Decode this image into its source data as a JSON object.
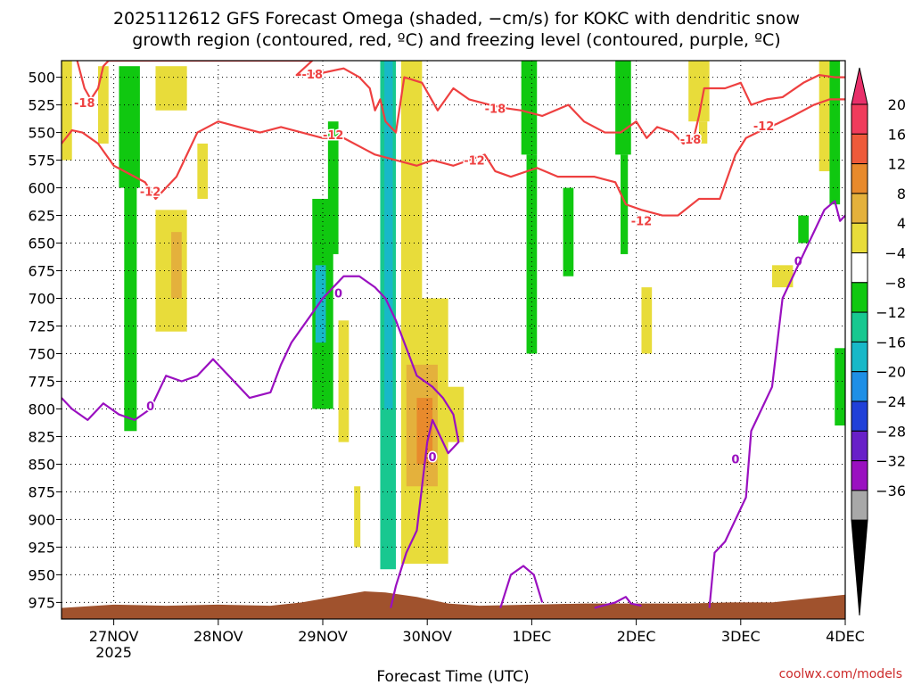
{
  "chart_data": {
    "type": "heatmap",
    "title_line1": "2025112612 GFS Forecast Omega (shaded, −cm/s) for KOKC with dendritic snow",
    "title_line2": "growth region (contoured, red, ºC) and freezing level (contoured, purple, ºC)",
    "xlabel": "Forecast Time (UTC)",
    "credit": "coolwx.com/models",
    "x_ticks": [
      {
        "t": 0.5,
        "label": "27NOV",
        "sub": "2025"
      },
      {
        "t": 1.5,
        "label": "28NOV",
        "sub": ""
      },
      {
        "t": 2.5,
        "label": "29NOV",
        "sub": ""
      },
      {
        "t": 3.5,
        "label": "30NOV",
        "sub": ""
      },
      {
        "t": 4.5,
        "label": "1DEC",
        "sub": ""
      },
      {
        "t": 5.5,
        "label": "2DEC",
        "sub": ""
      },
      {
        "t": 6.5,
        "label": "3DEC",
        "sub": ""
      },
      {
        "t": 7.5,
        "label": "4DEC",
        "sub": ""
      }
    ],
    "y_ticks": [
      "500",
      "525",
      "550",
      "575",
      "600",
      "625",
      "650",
      "675",
      "700",
      "725",
      "750",
      "775",
      "800",
      "825",
      "850",
      "875",
      "900",
      "925",
      "950",
      "975"
    ],
    "y_tick_values": [
      500,
      525,
      550,
      575,
      600,
      625,
      650,
      675,
      700,
      725,
      750,
      775,
      800,
      825,
      850,
      875,
      900,
      925,
      950,
      975
    ],
    "xlim": [
      0,
      7.5
    ],
    "ylim": [
      990,
      485
    ],
    "colorbar": {
      "labels": [
        "20",
        "16",
        "12",
        "8",
        "4",
        "−4",
        "−8",
        "−12",
        "−16",
        "−20",
        "−24",
        "−28",
        "−32",
        "−36"
      ],
      "colors": [
        "#f03c5c",
        "#ee5a3a",
        "#e88a2c",
        "#e4b13c",
        "#e8dc3a",
        "#ffffff",
        "#10c810",
        "#18c890",
        "#18b8c8",
        "#1e8fe6",
        "#2040d8",
        "#6820c8",
        "#9a10c0",
        "#a8a8a8"
      ],
      "top_color": "#e8306a",
      "bottom_color": "#000000"
    },
    "omega_colors": {
      "yellow": "#e8dc3a",
      "orange": "#e4b13c",
      "darkorange": "#e88a2c",
      "green": "#10c810",
      "teal": "#18c890",
      "cyan": "#18b8c8"
    },
    "omega_regions": [
      {
        "t0": -0.05,
        "t1": 0.1,
        "p0": 485,
        "p1": 575,
        "color": "yellow"
      },
      {
        "t0": 0.35,
        "t1": 0.45,
        "p0": 490,
        "p1": 560,
        "color": "yellow"
      },
      {
        "t0": 0.55,
        "t1": 0.75,
        "p0": 490,
        "p1": 600,
        "color": "green"
      },
      {
        "t0": 0.6,
        "t1": 0.72,
        "p0": 600,
        "p1": 820,
        "color": "green"
      },
      {
        "t0": 0.9,
        "t1": 1.2,
        "p0": 490,
        "p1": 530,
        "color": "yellow"
      },
      {
        "t0": 0.9,
        "t1": 1.2,
        "p0": 620,
        "p1": 730,
        "color": "yellow"
      },
      {
        "t0": 1.05,
        "t1": 1.15,
        "p0": 640,
        "p1": 700,
        "color": "orange"
      },
      {
        "t0": 1.3,
        "t1": 1.4,
        "p0": 560,
        "p1": 610,
        "color": "yellow"
      },
      {
        "t0": 2.4,
        "t1": 2.6,
        "p0": 610,
        "p1": 800,
        "color": "green"
      },
      {
        "t0": 2.43,
        "t1": 2.53,
        "p0": 670,
        "p1": 740,
        "color": "cyan"
      },
      {
        "t0": 2.55,
        "t1": 2.65,
        "p0": 540,
        "p1": 660,
        "color": "green"
      },
      {
        "t0": 2.65,
        "t1": 2.75,
        "p0": 720,
        "p1": 830,
        "color": "yellow"
      },
      {
        "t0": 2.8,
        "t1": 2.86,
        "p0": 870,
        "p1": 925,
        "color": "yellow"
      },
      {
        "t0": 3.05,
        "t1": 3.2,
        "p0": 485,
        "p1": 945,
        "color": "teal"
      },
      {
        "t0": 3.09,
        "t1": 3.17,
        "p0": 485,
        "p1": 800,
        "color": "cyan"
      },
      {
        "t0": 3.25,
        "t1": 3.45,
        "p0": 485,
        "p1": 700,
        "color": "yellow"
      },
      {
        "t0": 3.25,
        "t1": 3.7,
        "p0": 700,
        "p1": 940,
        "color": "yellow"
      },
      {
        "t0": 3.3,
        "t1": 3.6,
        "p0": 760,
        "p1": 870,
        "color": "orange"
      },
      {
        "t0": 3.4,
        "t1": 3.55,
        "p0": 790,
        "p1": 850,
        "color": "darkorange"
      },
      {
        "t0": 3.65,
        "t1": 3.85,
        "p0": 780,
        "p1": 830,
        "color": "yellow"
      },
      {
        "t0": 4.4,
        "t1": 4.55,
        "p0": 485,
        "p1": 570,
        "color": "green"
      },
      {
        "t0": 4.45,
        "t1": 4.55,
        "p0": 570,
        "p1": 750,
        "color": "green"
      },
      {
        "t0": 4.8,
        "t1": 4.9,
        "p0": 600,
        "p1": 680,
        "color": "green"
      },
      {
        "t0": 5.3,
        "t1": 5.45,
        "p0": 485,
        "p1": 570,
        "color": "green"
      },
      {
        "t0": 5.35,
        "t1": 5.42,
        "p0": 570,
        "p1": 660,
        "color": "green"
      },
      {
        "t0": 5.55,
        "t1": 5.65,
        "p0": 690,
        "p1": 750,
        "color": "yellow"
      },
      {
        "t0": 6.0,
        "t1": 6.2,
        "p0": 485,
        "p1": 540,
        "color": "yellow"
      },
      {
        "t0": 6.1,
        "t1": 6.18,
        "p0": 540,
        "p1": 560,
        "color": "yellow"
      },
      {
        "t0": 6.8,
        "t1": 7.0,
        "p0": 670,
        "p1": 690,
        "color": "yellow"
      },
      {
        "t0": 7.05,
        "t1": 7.15,
        "p0": 625,
        "p1": 650,
        "color": "green"
      },
      {
        "t0": 7.25,
        "t1": 7.35,
        "p0": 485,
        "p1": 585,
        "color": "yellow"
      },
      {
        "t0": 7.35,
        "t1": 7.45,
        "p0": 485,
        "p1": 615,
        "color": "green"
      },
      {
        "t0": 7.4,
        "t1": 7.5,
        "p0": 745,
        "p1": 815,
        "color": "green"
      }
    ],
    "dgz_contours": [
      {
        "label": "-18",
        "label_at": [
          {
            "t": 0.22,
            "p": 523
          },
          {
            "t": 2.4,
            "p": 497
          },
          {
            "t": 4.15,
            "p": 528
          },
          {
            "t": 6.02,
            "p": 556
          }
        ],
        "points": [
          [
            0.15,
            485
          ],
          [
            0.22,
            510
          ],
          [
            0.28,
            520
          ],
          [
            0.35,
            510
          ],
          [
            0.4,
            490
          ],
          [
            0.45,
            485
          ],
          [
            2.4,
            485
          ],
          [
            2.25,
            498
          ],
          [
            2.5,
            496
          ],
          [
            2.7,
            492
          ],
          [
            2.85,
            500
          ],
          [
            2.95,
            510
          ],
          [
            3.0,
            530
          ],
          [
            3.05,
            520
          ],
          [
            3.1,
            540
          ],
          [
            3.2,
            550
          ],
          [
            3.28,
            500
          ],
          [
            3.45,
            505
          ],
          [
            3.6,
            530
          ],
          [
            3.75,
            510
          ],
          [
            3.9,
            520
          ],
          [
            4.1,
            525
          ],
          [
            4.25,
            528
          ],
          [
            4.4,
            530
          ],
          [
            4.6,
            535
          ],
          [
            4.85,
            525
          ],
          [
            5.0,
            540
          ],
          [
            5.2,
            550
          ],
          [
            5.35,
            550
          ],
          [
            5.5,
            540
          ],
          [
            5.6,
            555
          ],
          [
            5.7,
            545
          ],
          [
            5.85,
            550
          ],
          [
            5.95,
            560
          ],
          [
            6.05,
            555
          ],
          [
            6.1,
            535
          ],
          [
            6.15,
            510
          ],
          [
            6.35,
            510
          ],
          [
            6.5,
            505
          ],
          [
            6.6,
            525
          ],
          [
            6.75,
            520
          ],
          [
            6.9,
            518
          ],
          [
            7.1,
            505
          ],
          [
            7.25,
            498
          ],
          [
            7.4,
            500
          ],
          [
            7.5,
            500
          ]
        ]
      },
      {
        "label": "-12",
        "label_at": [
          {
            "t": 0.85,
            "p": 603
          },
          {
            "t": 2.6,
            "p": 552
          },
          {
            "t": 3.95,
            "p": 575
          },
          {
            "t": 5.55,
            "p": 630
          },
          {
            "t": 6.72,
            "p": 544
          }
        ],
        "points": [
          [
            0.0,
            560
          ],
          [
            0.1,
            548
          ],
          [
            0.2,
            550
          ],
          [
            0.35,
            560
          ],
          [
            0.5,
            580
          ],
          [
            0.7,
            590
          ],
          [
            0.8,
            595
          ],
          [
            0.9,
            610
          ],
          [
            1.0,
            600
          ],
          [
            1.1,
            590
          ],
          [
            1.2,
            570
          ],
          [
            1.3,
            550
          ],
          [
            1.5,
            540
          ],
          [
            1.7,
            545
          ],
          [
            1.9,
            550
          ],
          [
            2.1,
            545
          ],
          [
            2.3,
            550
          ],
          [
            2.5,
            555
          ],
          [
            2.7,
            555
          ],
          [
            2.9,
            565
          ],
          [
            3.0,
            570
          ],
          [
            3.2,
            575
          ],
          [
            3.4,
            580
          ],
          [
            3.55,
            575
          ],
          [
            3.75,
            580
          ],
          [
            3.9,
            575
          ],
          [
            4.05,
            570
          ],
          [
            4.15,
            585
          ],
          [
            4.3,
            590
          ],
          [
            4.55,
            582
          ],
          [
            4.75,
            590
          ],
          [
            4.95,
            590
          ],
          [
            5.1,
            590
          ],
          [
            5.3,
            595
          ],
          [
            5.4,
            615
          ],
          [
            5.55,
            620
          ],
          [
            5.75,
            625
          ],
          [
            5.9,
            625
          ],
          [
            6.1,
            610
          ],
          [
            6.3,
            610
          ],
          [
            6.45,
            570
          ],
          [
            6.55,
            555
          ],
          [
            6.7,
            548
          ],
          [
            6.85,
            542
          ],
          [
            7.0,
            535
          ],
          [
            7.2,
            525
          ],
          [
            7.35,
            520
          ],
          [
            7.5,
            520
          ]
        ]
      }
    ],
    "freezing_contours": [
      {
        "label": "0",
        "label_at": [
          {
            "t": 0.85,
            "p": 797
          },
          {
            "t": 2.65,
            "p": 695
          },
          {
            "t": 3.55,
            "p": 843
          },
          {
            "t": 6.45,
            "p": 845
          },
          {
            "t": 7.05,
            "p": 666
          }
        ],
        "points": [
          [
            0.0,
            790
          ],
          [
            0.1,
            800
          ],
          [
            0.25,
            810
          ],
          [
            0.4,
            795
          ],
          [
            0.55,
            805
          ],
          [
            0.7,
            810
          ],
          [
            0.85,
            800
          ],
          [
            1.0,
            770
          ],
          [
            1.15,
            775
          ],
          [
            1.3,
            770
          ],
          [
            1.45,
            755
          ],
          [
            1.6,
            770
          ],
          [
            1.8,
            790
          ],
          [
            2.0,
            785
          ],
          [
            2.1,
            760
          ],
          [
            2.2,
            740
          ],
          [
            2.35,
            720
          ],
          [
            2.5,
            700
          ],
          [
            2.6,
            690
          ],
          [
            2.7,
            680
          ],
          [
            2.85,
            680
          ],
          [
            3.0,
            690
          ],
          [
            3.1,
            700
          ],
          [
            3.2,
            720
          ],
          [
            3.3,
            745
          ],
          [
            3.4,
            770
          ],
          [
            3.55,
            780
          ],
          [
            3.65,
            790
          ],
          [
            3.75,
            805
          ],
          [
            3.8,
            830
          ],
          [
            3.7,
            840
          ],
          [
            3.6,
            820
          ],
          [
            3.55,
            810
          ],
          [
            3.5,
            830
          ],
          [
            3.45,
            870
          ],
          [
            3.4,
            910
          ],
          [
            3.3,
            930
          ],
          [
            3.2,
            960
          ],
          [
            3.15,
            980
          ]
        ]
      },
      {
        "label": "",
        "label_at": [],
        "points": [
          [
            4.2,
            980
          ],
          [
            4.3,
            950
          ],
          [
            4.42,
            942
          ],
          [
            4.52,
            950
          ],
          [
            4.6,
            975
          ]
        ]
      },
      {
        "label": "",
        "label_at": [],
        "points": [
          [
            5.1,
            980
          ],
          [
            5.3,
            975
          ],
          [
            5.4,
            970
          ],
          [
            5.45,
            976
          ],
          [
            5.55,
            978
          ]
        ]
      },
      {
        "label": "",
        "label_at": [],
        "points": [
          [
            6.2,
            980
          ],
          [
            6.25,
            930
          ],
          [
            6.35,
            920
          ],
          [
            6.45,
            900
          ],
          [
            6.55,
            880
          ],
          [
            6.6,
            820
          ],
          [
            6.7,
            800
          ],
          [
            6.8,
            780
          ],
          [
            6.9,
            700
          ],
          [
            7.0,
            680
          ],
          [
            7.1,
            660
          ],
          [
            7.2,
            640
          ],
          [
            7.3,
            620
          ],
          [
            7.4,
            612
          ],
          [
            7.45,
            630
          ],
          [
            7.5,
            625
          ]
        ]
      }
    ],
    "terrain": {
      "color": "#a0522d",
      "points": [
        [
          0.0,
          980
        ],
        [
          0.5,
          977
        ],
        [
          1.0,
          978
        ],
        [
          1.5,
          977
        ],
        [
          2.0,
          978
        ],
        [
          2.3,
          975
        ],
        [
          2.6,
          970
        ],
        [
          2.9,
          965
        ],
        [
          3.1,
          966
        ],
        [
          3.4,
          970
        ],
        [
          3.7,
          976
        ],
        [
          4.0,
          978
        ],
        [
          4.5,
          977
        ],
        [
          5.0,
          976
        ],
        [
          5.5,
          976
        ],
        [
          6.0,
          976
        ],
        [
          6.4,
          975
        ],
        [
          6.8,
          975
        ],
        [
          7.1,
          972
        ],
        [
          7.5,
          968
        ]
      ]
    }
  }
}
